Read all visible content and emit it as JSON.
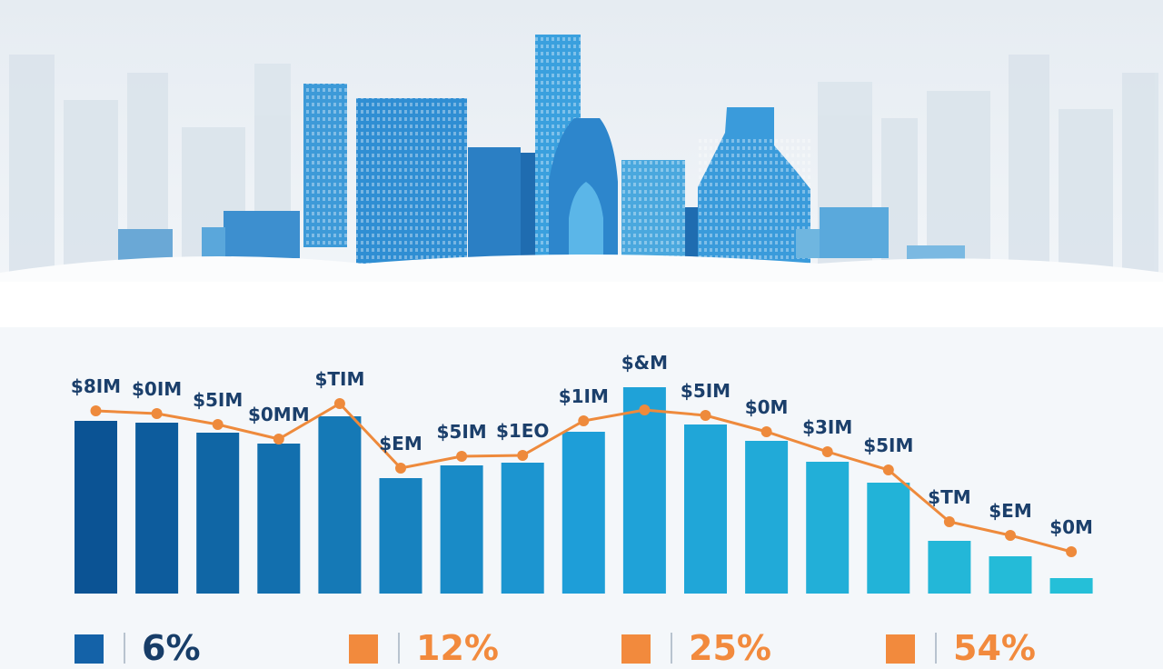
{
  "chart_data": {
    "type": "bar",
    "title": "",
    "xlabel": "",
    "ylabel": "",
    "categories": [
      "",
      "",
      "",
      "",
      "",
      "",
      "",
      "",
      "",
      "",
      "",
      "",
      "",
      "",
      "",
      "",
      ""
    ],
    "data_labels": [
      "$8IM",
      "$0IM",
      "$5IM",
      "$0MM",
      "$TIM",
      "$EM",
      "$5IM",
      "$1EO",
      "$1IM",
      "$&M",
      "$5IM",
      "$0M",
      "$3IM",
      "$5IM",
      "$TM",
      "$EM",
      "$0M"
    ],
    "series": [
      {
        "type": "bar",
        "values": [
          190,
          188,
          177,
          165,
          195,
          127,
          141,
          144,
          178,
          227,
          186,
          168,
          145,
          122,
          58,
          41,
          17
        ]
      },
      {
        "type": "line",
        "values": [
          201,
          198,
          186,
          170,
          209,
          138,
          151,
          152,
          190,
          202,
          196,
          178,
          156,
          136,
          79,
          64,
          46
        ]
      }
    ],
    "ylim": [
      0,
      240
    ],
    "grid": false,
    "colors": {
      "bar_start": "#0b5394",
      "bar_mid": "#1e9ed8",
      "bar_end": "#25bfd8",
      "line": "#ee8a3c",
      "label": "#1b3f6b"
    }
  },
  "legend": [
    {
      "label": "6%",
      "color": "#1462a8"
    },
    {
      "label": "12%",
      "color": "#f28a3d"
    },
    {
      "label": "25%",
      "color": "#f28a3d"
    },
    {
      "label": "54%",
      "color": "#f28a3d"
    }
  ]
}
